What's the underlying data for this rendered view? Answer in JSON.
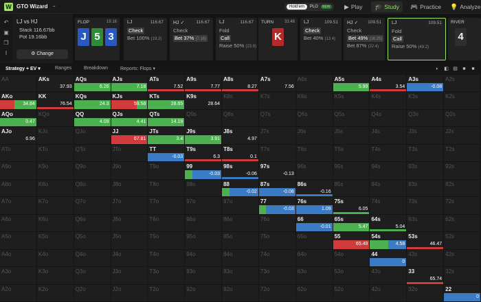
{
  "app": {
    "brand": "GTO Wizard",
    "logo": "W"
  },
  "game_toggle": {
    "holdem": "Hold'em",
    "plo": "PLO",
    "new_badge": "NEW"
  },
  "nav": [
    {
      "label": "Play",
      "icon": "▶"
    },
    {
      "label": "Study",
      "icon": "🎓"
    },
    {
      "label": "Practice",
      "icon": "🎮"
    },
    {
      "label": "Analyze",
      "icon": "💡"
    }
  ],
  "colors": {
    "call": "#4caf50",
    "raise": "#d23b3b",
    "fold": "#3b7bc4",
    "check": "#4caf50",
    "accent": "#9be36a"
  },
  "matchup": {
    "title": "LJ vs HJ",
    "stack": "Stack 116.67bb",
    "pot": "Pot 19.16bb",
    "change": "⚙ Change"
  },
  "flop": {
    "label": "FLOP",
    "pot": "19.16",
    "cards": [
      {
        "rank": "J",
        "color": "#2858c4"
      },
      {
        "rank": "5",
        "color": "#2e8b3a"
      },
      {
        "rank": "3",
        "color": "#2858c4"
      }
    ]
  },
  "steps": [
    {
      "pos": "LJ",
      "amt": "116.67",
      "actions": [
        {
          "name": "Check",
          "pct": ""
        },
        {
          "name": "Bet 100%",
          "pct": "(19.2)"
        }
      ],
      "sel": 0
    },
    {
      "pos": "HJ ✓",
      "amt": "116.67",
      "actions": [
        {
          "name": "Check",
          "pct": ""
        },
        {
          "name": "Bet 37%",
          "pct": "(7.16)"
        }
      ],
      "sel": 1
    },
    {
      "pos": "LJ",
      "amt": "116.67",
      "actions": [
        {
          "name": "Fold",
          "pct": ""
        },
        {
          "name": "Call",
          "pct": ""
        },
        {
          "name": "Raise 50%",
          "pct": "(23.9)"
        }
      ],
      "sel": 1
    },
    {
      "pos": "LJ",
      "amt": "109.51",
      "actions": [
        {
          "name": "Check",
          "pct": ""
        },
        {
          "name": "Bet 40%",
          "pct": "(13.4)"
        }
      ],
      "sel": 0
    },
    {
      "pos": "HJ ✓",
      "amt": "109.51",
      "actions": [
        {
          "name": "Check",
          "pct": ""
        },
        {
          "name": "Bet 49%",
          "pct": "(16.25)"
        },
        {
          "name": "Bet 87%",
          "pct": "(22.4)"
        }
      ],
      "sel": 1
    },
    {
      "pos": "LJ",
      "amt": "109.51",
      "actions": [
        {
          "name": "Fold",
          "pct": ""
        },
        {
          "name": "Call",
          "pct": ""
        },
        {
          "name": "Raise 50%",
          "pct": "(49.2)"
        }
      ],
      "sel": 1
    }
  ],
  "turn": {
    "label": "TURN",
    "pot": "33.48",
    "card": "K"
  },
  "river": {
    "label": "RIVER",
    "card": "4"
  },
  "tabs": [
    "Strategy + EV ▾",
    "Ranges",
    "Breakdown",
    "Reports: Flops ▾"
  ],
  "hands": [
    [
      {
        "h": "AA"
      },
      {
        "h": "AKs",
        "ev": "37.93",
        "segs": []
      },
      {
        "h": "AQs",
        "ev": "6.26",
        "segs": [
          {
            "c": "check",
            "w": 1
          }
        ]
      },
      {
        "h": "AJs",
        "ev": "7.18",
        "segs": [
          {
            "c": "check",
            "w": 1
          }
        ]
      },
      {
        "h": "ATs",
        "ev": "7.52",
        "segs": [
          {
            "c": "raise",
            "w": 1
          }
        ],
        "thin": true
      },
      {
        "h": "A9s",
        "ev": "7.77",
        "segs": [
          {
            "c": "raise",
            "w": 1
          }
        ],
        "thin": true
      },
      {
        "h": "A8s",
        "ev": "8.27",
        "segs": [
          {
            "c": "raise",
            "w": 1
          }
        ],
        "thin": true
      },
      {
        "h": "A7s",
        "ev": "7.56"
      },
      {
        "h": "A6s"
      },
      {
        "h": "A5s",
        "ev": "5.99",
        "segs": [
          {
            "c": "check",
            "w": 1
          }
        ]
      },
      {
        "h": "A4s",
        "ev": "3.54",
        "segs": [
          {
            "c": "raise",
            "w": 1
          }
        ],
        "thin": true
      },
      {
        "h": "A3s",
        "ev": "-0.08",
        "segs": [
          {
            "c": "fold",
            "w": 1
          }
        ]
      },
      {
        "h": "A2s"
      }
    ],
    [
      {
        "h": "AKo",
        "ev": "34.84",
        "segs": [
          {
            "c": "raise",
            "w": 0.4
          },
          {
            "c": "check",
            "w": 0.6
          }
        ]
      },
      {
        "h": "KK",
        "ev": "76.54",
        "segs": [
          {
            "c": "raise",
            "w": 1
          }
        ],
        "thin": true
      },
      {
        "h": "KQs",
        "ev": "24.3",
        "segs": [
          {
            "c": "check",
            "w": 1
          }
        ]
      },
      {
        "h": "KJs",
        "ev": "59.58",
        "segs": [
          {
            "c": "raise",
            "w": 0.7
          },
          {
            "c": "check",
            "w": 0.3
          }
        ]
      },
      {
        "h": "KTs",
        "ev": "28.65",
        "segs": [
          {
            "c": "check",
            "w": 1
          }
        ]
      },
      {
        "h": "K9s",
        "ev": "28.64"
      },
      {
        "h": "K8s"
      },
      {
        "h": "K7s"
      },
      {
        "h": "K6s"
      },
      {
        "h": "K5s"
      },
      {
        "h": "K4s"
      },
      {
        "h": "K3s"
      },
      {
        "h": "K2s"
      }
    ],
    [
      {
        "h": "AQo",
        "ev": "0.47",
        "segs": [
          {
            "c": "check",
            "w": 1
          }
        ]
      },
      {
        "h": "KQo"
      },
      {
        "h": "QQ",
        "ev": "4.09",
        "segs": [
          {
            "c": "check",
            "w": 1
          }
        ]
      },
      {
        "h": "QJs",
        "ev": "4.41",
        "segs": [
          {
            "c": "check",
            "w": 1
          }
        ]
      },
      {
        "h": "QTs",
        "ev": "14.19",
        "segs": [
          {
            "c": "check",
            "w": 1
          }
        ]
      },
      {
        "h": "Q9s"
      },
      {
        "h": "Q8s"
      },
      {
        "h": "Q7s"
      },
      {
        "h": "Q6s"
      },
      {
        "h": "Q5s"
      },
      {
        "h": "Q4s"
      },
      {
        "h": "Q3s"
      },
      {
        "h": "Q2s"
      }
    ],
    [
      {
        "h": "AJo",
        "ev": "6.96"
      },
      {
        "h": "KJo"
      },
      {
        "h": "QJo"
      },
      {
        "h": "JJ",
        "ev": "67.81",
        "segs": [
          {
            "c": "raise",
            "w": 1
          }
        ]
      },
      {
        "h": "JTs",
        "ev": "3.4",
        "segs": [
          {
            "c": "check",
            "w": 1
          }
        ]
      },
      {
        "h": "J9s",
        "ev": "3.91",
        "segs": [
          {
            "c": "check",
            "w": 1
          }
        ]
      },
      {
        "h": "J8s",
        "ev": "4.97"
      },
      {
        "h": "J7s"
      },
      {
        "h": "J6s"
      },
      {
        "h": "J5s"
      },
      {
        "h": "J4s"
      },
      {
        "h": "J3s"
      },
      {
        "h": "J2s"
      }
    ],
    [
      {
        "h": "ATo"
      },
      {
        "h": "KTo"
      },
      {
        "h": "QTo"
      },
      {
        "h": "JTo"
      },
      {
        "h": "TT",
        "ev": "-0.03",
        "segs": [
          {
            "c": "fold",
            "w": 1
          }
        ]
      },
      {
        "h": "T9s",
        "ev": "6.3",
        "segs": [
          {
            "c": "raise",
            "w": 1
          }
        ],
        "thin": true
      },
      {
        "h": "T8s",
        "ev": "0.1",
        "segs": [
          {
            "c": "raise",
            "w": 1
          }
        ],
        "thin": true
      },
      {
        "h": "T7s"
      },
      {
        "h": "T6s"
      },
      {
        "h": "T5s"
      },
      {
        "h": "T4s"
      },
      {
        "h": "T3s"
      },
      {
        "h": "T2s"
      }
    ],
    [
      {
        "h": "A9o"
      },
      {
        "h": "K9o"
      },
      {
        "h": "Q9o"
      },
      {
        "h": "J9o"
      },
      {
        "h": "T9o"
      },
      {
        "h": "99",
        "ev": "-0.03",
        "segs": [
          {
            "c": "check",
            "w": 0.2
          },
          {
            "c": "fold",
            "w": 0.8
          }
        ]
      },
      {
        "h": "98s",
        "ev": "-0.06",
        "segs": [
          {
            "c": "fold",
            "w": 1
          }
        ],
        "thin": true
      },
      {
        "h": "97s",
        "ev": "-0.13"
      },
      {
        "h": "96s"
      },
      {
        "h": "95s"
      },
      {
        "h": "94s"
      },
      {
        "h": "93s"
      },
      {
        "h": "92s"
      }
    ],
    [
      {
        "h": "A8o"
      },
      {
        "h": "K8o"
      },
      {
        "h": "Q8o"
      },
      {
        "h": "J8o"
      },
      {
        "h": "T8o"
      },
      {
        "h": "98o"
      },
      {
        "h": "88",
        "ev": "-0.02",
        "segs": [
          {
            "c": "check",
            "w": 0.2
          },
          {
            "c": "fold",
            "w": 0.8
          }
        ]
      },
      {
        "h": "87s",
        "ev": "-0.08",
        "segs": [
          {
            "c": "fold",
            "w": 1
          }
        ]
      },
      {
        "h": "86s",
        "ev": "-0.16",
        "segs": [
          {
            "c": "fold",
            "w": 1
          }
        ],
        "thin": true
      },
      {
        "h": "85s"
      },
      {
        "h": "84s"
      },
      {
        "h": "83s"
      },
      {
        "h": "82s"
      }
    ],
    [
      {
        "h": "A7o"
      },
      {
        "h": "K7o"
      },
      {
        "h": "Q7o"
      },
      {
        "h": "J7o"
      },
      {
        "h": "T7o"
      },
      {
        "h": "97o"
      },
      {
        "h": "87o"
      },
      {
        "h": "77",
        "ev": "-0.03",
        "segs": [
          {
            "c": "check",
            "w": 0.2
          },
          {
            "c": "fold",
            "w": 0.8
          }
        ]
      },
      {
        "h": "76s",
        "ev": "1.09",
        "segs": [
          {
            "c": "fold",
            "w": 1
          }
        ]
      },
      {
        "h": "75s",
        "ev": "6.05",
        "segs": [
          {
            "c": "check",
            "w": 1
          }
        ],
        "thin": true
      },
      {
        "h": "74s"
      },
      {
        "h": "73s"
      },
      {
        "h": "72s"
      }
    ],
    [
      {
        "h": "A6o"
      },
      {
        "h": "K6o"
      },
      {
        "h": "Q6o"
      },
      {
        "h": "J6o"
      },
      {
        "h": "T6o"
      },
      {
        "h": "96o"
      },
      {
        "h": "86o"
      },
      {
        "h": "76o"
      },
      {
        "h": "66",
        "ev": "-0.01",
        "segs": [
          {
            "c": "fold",
            "w": 1
          }
        ]
      },
      {
        "h": "65s",
        "ev": "5.47",
        "segs": [
          {
            "c": "check",
            "w": 1
          }
        ]
      },
      {
        "h": "64s",
        "ev": "5.04",
        "segs": [
          {
            "c": "check",
            "w": 1
          }
        ],
        "thin": true
      },
      {
        "h": "63s"
      },
      {
        "h": "62s"
      }
    ],
    [
      {
        "h": "A5o"
      },
      {
        "h": "K5o"
      },
      {
        "h": "Q5o"
      },
      {
        "h": "J5o"
      },
      {
        "h": "T5o"
      },
      {
        "h": "95o"
      },
      {
        "h": "85o"
      },
      {
        "h": "75o"
      },
      {
        "h": "65o"
      },
      {
        "h": "55",
        "ev": "65.49",
        "segs": [
          {
            "c": "raise",
            "w": 1
          }
        ]
      },
      {
        "h": "54s",
        "ev": "4.58",
        "segs": [
          {
            "c": "check",
            "w": 0.5
          },
          {
            "c": "fold",
            "w": 0.5
          }
        ]
      },
      {
        "h": "53s",
        "ev": "46.47",
        "segs": [
          {
            "c": "raise",
            "w": 1
          }
        ],
        "thin": true
      },
      {
        "h": "52s"
      }
    ],
    [
      {
        "h": "A4o"
      },
      {
        "h": "K4o"
      },
      {
        "h": "Q4o"
      },
      {
        "h": "J4o"
      },
      {
        "h": "T4o"
      },
      {
        "h": "94o"
      },
      {
        "h": "84o"
      },
      {
        "h": "74o"
      },
      {
        "h": "64o"
      },
      {
        "h": "54o"
      },
      {
        "h": "44",
        "ev": "0",
        "segs": [
          {
            "c": "fold",
            "w": 1
          }
        ]
      },
      {
        "h": "43s"
      },
      {
        "h": "42s"
      }
    ],
    [
      {
        "h": "A3o"
      },
      {
        "h": "K3o"
      },
      {
        "h": "Q3o"
      },
      {
        "h": "J3o"
      },
      {
        "h": "T3o"
      },
      {
        "h": "93o"
      },
      {
        "h": "83o"
      },
      {
        "h": "73o"
      },
      {
        "h": "63o"
      },
      {
        "h": "53o"
      },
      {
        "h": "43o"
      },
      {
        "h": "33",
        "ev": "65.74",
        "segs": [
          {
            "c": "raise",
            "w": 1
          }
        ],
        "thin": true
      },
      {
        "h": "32s"
      }
    ],
    [
      {
        "h": "A2o"
      },
      {
        "h": "K2o"
      },
      {
        "h": "Q2o"
      },
      {
        "h": "J2o"
      },
      {
        "h": "T2o"
      },
      {
        "h": "92o"
      },
      {
        "h": "82o"
      },
      {
        "h": "72o"
      },
      {
        "h": "62o"
      },
      {
        "h": "52o"
      },
      {
        "h": "42o"
      },
      {
        "h": "32o"
      },
      {
        "h": "22",
        "ev": "0",
        "segs": [
          {
            "c": "fold",
            "w": 1
          }
        ]
      }
    ]
  ]
}
